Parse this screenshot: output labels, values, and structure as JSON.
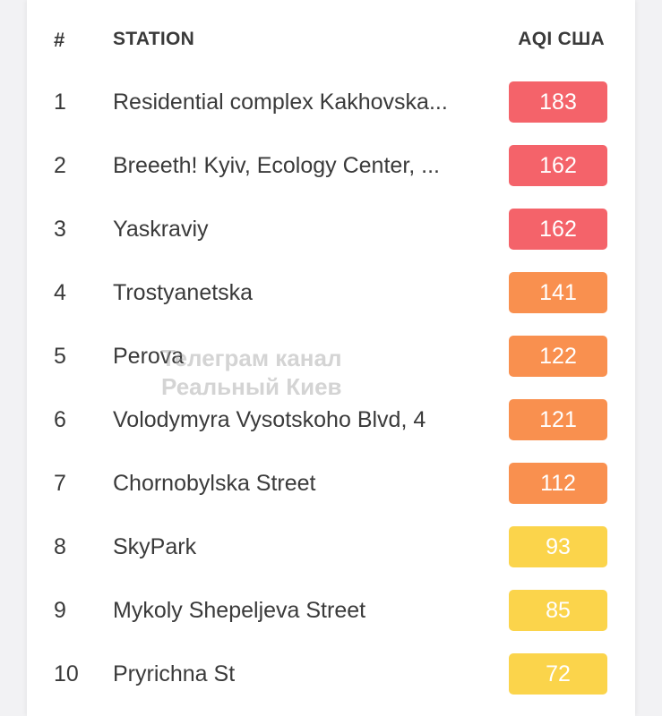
{
  "header": {
    "rank_label": "#",
    "station_label": "STATION",
    "aqi_label": "AQI США"
  },
  "rows": [
    {
      "rank": "1",
      "station": "Residential complex Kakhovska...",
      "aqi": "183",
      "color": "#f4636a"
    },
    {
      "rank": "2",
      "station": "Breeeth! Kyiv, Ecology Center, ...",
      "aqi": "162",
      "color": "#f4636a"
    },
    {
      "rank": "3",
      "station": "Yaskraviy",
      "aqi": "162",
      "color": "#f4636a"
    },
    {
      "rank": "4",
      "station": "Trostyanetska",
      "aqi": "141",
      "color": "#f9904f"
    },
    {
      "rank": "5",
      "station": "Perova",
      "aqi": "122",
      "color": "#f9904f"
    },
    {
      "rank": "6",
      "station": "Volodymyra Vysotskoho Blvd, 4",
      "aqi": "121",
      "color": "#f9904f"
    },
    {
      "rank": "7",
      "station": "Chornobylska Street",
      "aqi": "112",
      "color": "#f9904f"
    },
    {
      "rank": "8",
      "station": "SkyPark",
      "aqi": "93",
      "color": "#fbd44b"
    },
    {
      "rank": "9",
      "station": "Mykoly Shepeljeva Street",
      "aqi": "85",
      "color": "#fbd44b"
    },
    {
      "rank": "10",
      "station": "Pryrichna St",
      "aqi": "72",
      "color": "#fbd44b"
    }
  ],
  "watermark": {
    "line1": "Телеграм канал",
    "line2": "Реальный Киев"
  }
}
